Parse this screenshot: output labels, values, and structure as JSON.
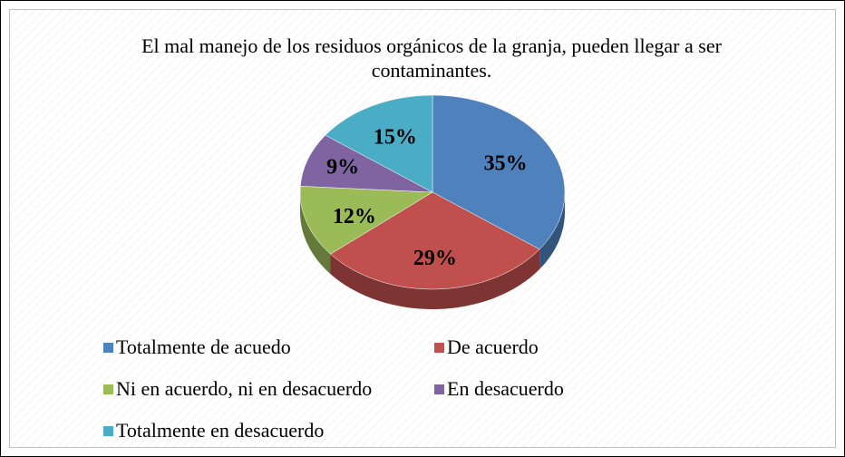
{
  "chart_data": {
    "type": "pie",
    "title": "El mal manejo de los residuos orgánicos de la granja, pueden llegar a ser contaminantes.",
    "categories": [
      "Totalmente de acuedo",
      "De acuerdo",
      "Ni en acuerdo, ni en desacuerdo",
      "En desacuerdo",
      "Totalmente en desacuerdo"
    ],
    "values": [
      35,
      29,
      12,
      9,
      15
    ],
    "value_labels": [
      "35%",
      "29%",
      "12%",
      "9%",
      "15%"
    ],
    "colors": [
      "#4f81bd",
      "#c0504d",
      "#9bbb59",
      "#8064a2",
      "#4bacc6"
    ],
    "legend": "bottom"
  }
}
